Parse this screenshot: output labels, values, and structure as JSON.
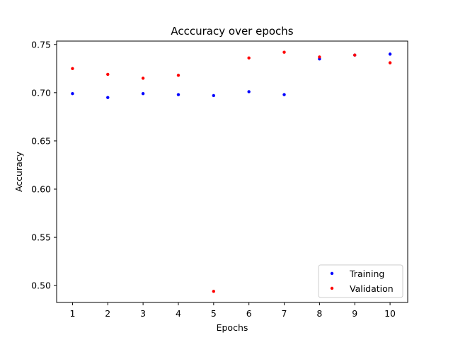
{
  "chart_data": {
    "type": "scatter",
    "title": "Acccuracy over epochs",
    "xlabel": "Epochs",
    "ylabel": "Accuracy",
    "x": [
      1,
      2,
      3,
      4,
      5,
      6,
      7,
      8,
      9,
      10
    ],
    "xlim": [
      0.55,
      10.5
    ],
    "ylim": [
      0.4825,
      0.7535
    ],
    "xticks": [
      "1",
      "2",
      "3",
      "4",
      "5",
      "6",
      "7",
      "8",
      "9",
      "10"
    ],
    "yticks": [
      "0.50",
      "0.55",
      "0.60",
      "0.65",
      "0.70",
      "0.75"
    ],
    "grid": false,
    "legend_position": "lower-right",
    "series": [
      {
        "name": "Training",
        "color": "#0000ff",
        "values": [
          0.699,
          0.695,
          0.699,
          0.698,
          0.697,
          0.701,
          0.698,
          0.735,
          0.739,
          0.74
        ]
      },
      {
        "name": "Validation",
        "color": "#ff0000",
        "values": [
          0.725,
          0.719,
          0.715,
          0.718,
          0.494,
          0.736,
          0.742,
          0.737,
          0.739,
          0.731
        ]
      }
    ]
  }
}
